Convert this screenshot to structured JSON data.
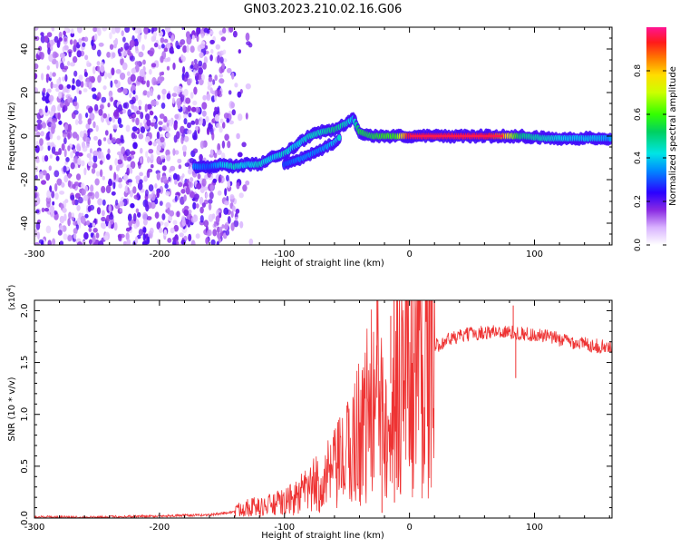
{
  "title": "GN03.2023.210.02.16.G06",
  "chart_data": [
    {
      "type": "heatmap",
      "xlabel": "Height of straight line (km)",
      "ylabel": "Frequency (Hz)",
      "xlim": [
        -300,
        162
      ],
      "ylim": [
        -50,
        50
      ],
      "xticks": [
        -300,
        -200,
        -100,
        0,
        100
      ],
      "yticks": [
        -40,
        -20,
        0,
        20,
        40
      ],
      "colorbar": {
        "label": "Normalized spectral amplitude",
        "range": [
          0,
          1
        ],
        "ticks": [
          "0.0",
          "0.2",
          "0.4",
          "0.6",
          "0.8"
        ]
      },
      "noise_region_x": [
        -300,
        -155
      ],
      "ridge": [
        {
          "x": -172,
          "y": -14,
          "amp": 0.35
        },
        {
          "x": -160,
          "y": -14,
          "amp": 0.3
        },
        {
          "x": -150,
          "y": -13,
          "amp": 0.4
        },
        {
          "x": -140,
          "y": -14,
          "amp": 0.45
        },
        {
          "x": -130,
          "y": -13,
          "amp": 0.4
        },
        {
          "x": -120,
          "y": -13,
          "amp": 0.45
        },
        {
          "x": -110,
          "y": -10,
          "amp": 0.4
        },
        {
          "x": -100,
          "y": -8,
          "amp": 0.45
        },
        {
          "x": -90,
          "y": -4,
          "amp": 0.4
        },
        {
          "x": -80,
          "y": 0,
          "amp": 0.45
        },
        {
          "x": -70,
          "y": 2,
          "amp": 0.45
        },
        {
          "x": -60,
          "y": 3,
          "amp": 0.5
        },
        {
          "x": -50,
          "y": 6,
          "amp": 0.45
        },
        {
          "x": -45,
          "y": 8,
          "amp": 0.4
        },
        {
          "x": -40,
          "y": 2,
          "amp": 0.55
        },
        {
          "x": -30,
          "y": 0,
          "amp": 0.55
        },
        {
          "x": -20,
          "y": 0,
          "amp": 0.6
        },
        {
          "x": -10,
          "y": 0,
          "amp": 0.6
        },
        {
          "x": 0,
          "y": 0,
          "amp": 0.95
        },
        {
          "x": 20,
          "y": 0,
          "amp": 0.95
        },
        {
          "x": 40,
          "y": 0,
          "amp": 0.95
        },
        {
          "x": 60,
          "y": 0,
          "amp": 0.95
        },
        {
          "x": 75,
          "y": 0,
          "amp": 0.85
        },
        {
          "x": 90,
          "y": 0,
          "amp": 0.5
        },
        {
          "x": 110,
          "y": -1,
          "amp": 0.45
        },
        {
          "x": 130,
          "y": -1,
          "amp": 0.4
        },
        {
          "x": 150,
          "y": -1,
          "amp": 0.4
        },
        {
          "x": 162,
          "y": -1,
          "amp": 0.35
        }
      ],
      "secondary_branch": [
        {
          "x": -100,
          "y": -13,
          "amp": 0.3
        },
        {
          "x": -85,
          "y": -10,
          "amp": 0.35
        },
        {
          "x": -70,
          "y": -6,
          "amp": 0.35
        },
        {
          "x": -60,
          "y": -3,
          "amp": 0.4
        },
        {
          "x": -55,
          "y": 0,
          "amp": 0.45
        }
      ]
    },
    {
      "type": "line",
      "xlabel": "Height of straight line (km)",
      "ylabel": "SNR (10 * v/v)",
      "y_multiplier": "(x10",
      "y_multiplier_exp": "4",
      "y_multiplier_close": ")",
      "xlim": [
        -300,
        162
      ],
      "ylim": [
        0,
        2.1
      ],
      "xticks": [
        -300,
        -200,
        -100,
        0,
        100
      ],
      "yticks": [
        "0.0",
        "0.5",
        "1.0",
        "1.5",
        "2.0"
      ],
      "color": "#ee3333",
      "envelope": [
        {
          "x": -300,
          "y": 0.01
        },
        {
          "x": -250,
          "y": 0.01
        },
        {
          "x": -200,
          "y": 0.02
        },
        {
          "x": -160,
          "y": 0.03
        },
        {
          "x": -140,
          "y": 0.06
        },
        {
          "x": -130,
          "y": 0.12
        },
        {
          "x": -120,
          "y": 0.1
        },
        {
          "x": -110,
          "y": 0.13
        },
        {
          "x": -100,
          "y": 0.15
        },
        {
          "x": -90,
          "y": 0.2
        },
        {
          "x": -80,
          "y": 0.28
        },
        {
          "x": -70,
          "y": 0.35
        },
        {
          "x": -60,
          "y": 0.45
        },
        {
          "x": -50,
          "y": 0.6
        },
        {
          "x": -40,
          "y": 0.85
        },
        {
          "x": -30,
          "y": 1.1
        },
        {
          "x": -20,
          "y": 1.25
        },
        {
          "x": -10,
          "y": 1.35
        },
        {
          "x": 0,
          "y": 1.45
        },
        {
          "x": 10,
          "y": 1.55
        },
        {
          "x": 20,
          "y": 1.65
        },
        {
          "x": 30,
          "y": 1.72
        },
        {
          "x": 50,
          "y": 1.78
        },
        {
          "x": 70,
          "y": 1.8
        },
        {
          "x": 90,
          "y": 1.78
        },
        {
          "x": 110,
          "y": 1.75
        },
        {
          "x": 130,
          "y": 1.7
        },
        {
          "x": 150,
          "y": 1.66
        },
        {
          "x": 162,
          "y": 1.64
        }
      ],
      "spikes": [
        {
          "x": -26,
          "y": 2.1
        },
        {
          "x": -22,
          "y": 0.05
        },
        {
          "x": -15,
          "y": 1.95
        },
        {
          "x": -12,
          "y": 0.15
        },
        {
          "x": 83,
          "y": 2.05
        },
        {
          "x": 85,
          "y": 1.35
        }
      ]
    }
  ]
}
